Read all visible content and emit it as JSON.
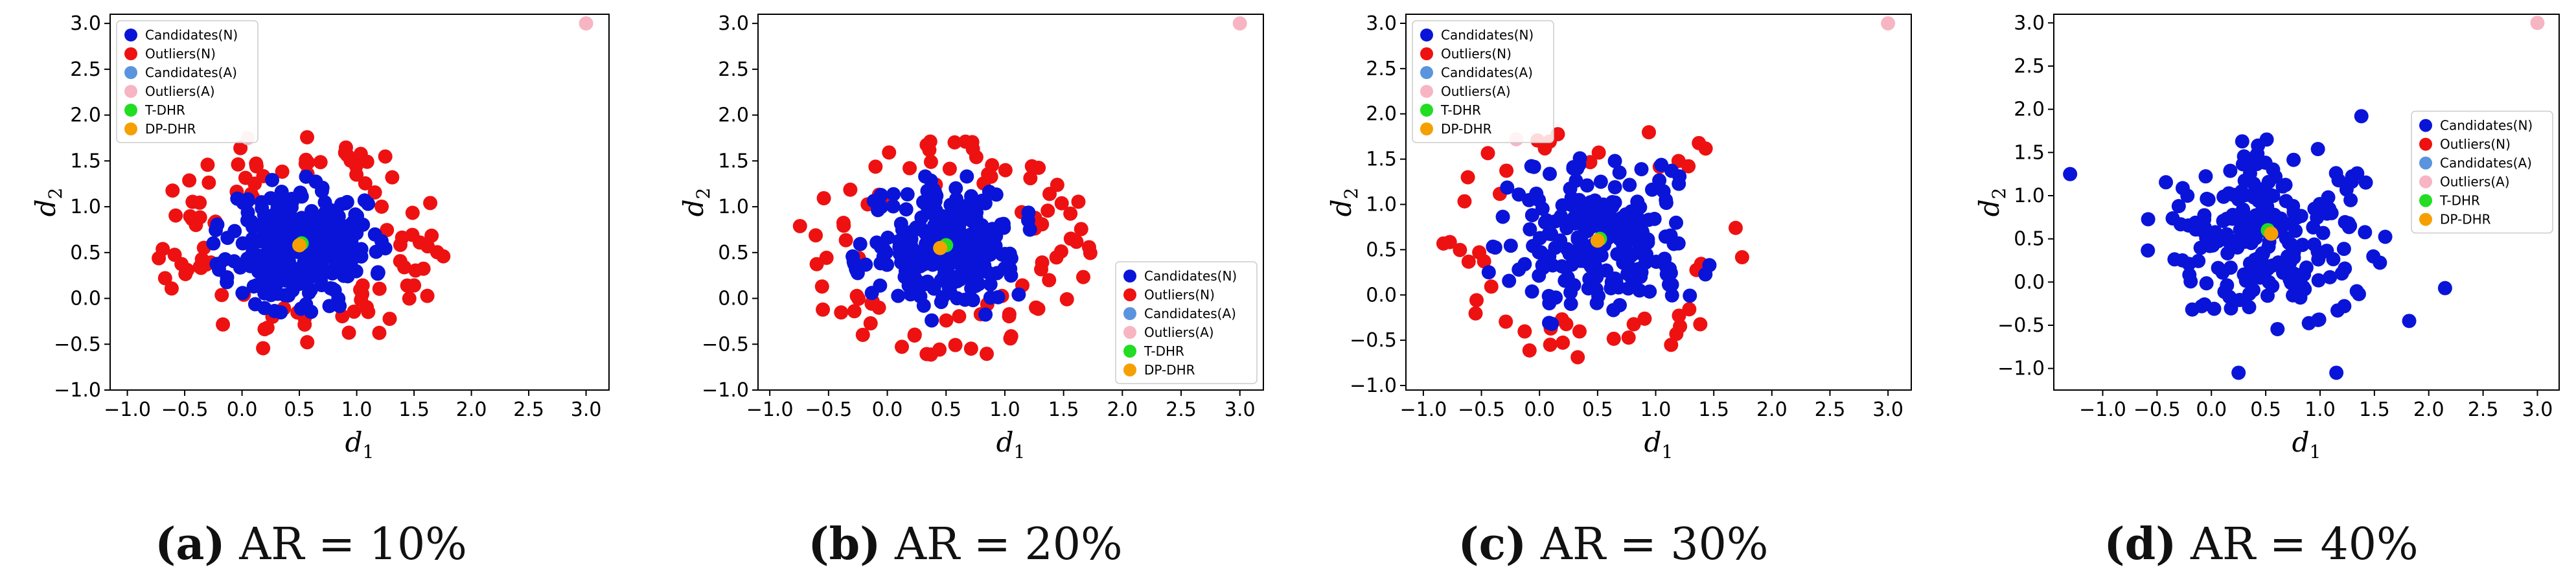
{
  "colors": {
    "candidates_n": "#0a14d8",
    "outliers_n": "#ee1111",
    "candidates_a": "#5b94de",
    "outliers_a": "#f7b5c3",
    "t_dhr": "#22dd22",
    "dp_dhr": "#f5a000"
  },
  "chart_data": [
    {
      "type": "scatter",
      "xlabel": "d",
      "xlabel_sub": "1",
      "ylabel": "d",
      "ylabel_sub": "2",
      "xlim": [
        -1.15,
        3.2
      ],
      "ylim": [
        -1.0,
        3.1
      ],
      "xticks": [
        -1.0,
        -0.5,
        0.0,
        0.5,
        1.0,
        1.5,
        2.0,
        2.5,
        3.0
      ],
      "yticks": [
        -1.0,
        -0.5,
        0.0,
        0.5,
        1.0,
        1.5,
        2.0,
        2.5,
        3.0
      ],
      "legend_position": "top-left",
      "legend": [
        "Candidates(N)",
        "Outliers(N)",
        "Candidates(A)",
        "Outliers(A)",
        "T-DHR",
        "DP-DHR"
      ],
      "outliers_a": [
        [
          3.0,
          3.0
        ],
        [
          0.05,
          1.75
        ]
      ],
      "t_dhr": [
        0.52,
        0.6
      ],
      "dp_dhr": [
        0.5,
        0.58
      ],
      "candidates": {
        "count": 300,
        "center": [
          0.5,
          0.58
        ],
        "radius": 0.75,
        "seed": 11
      },
      "outliers": {
        "count": 100,
        "center": [
          0.5,
          0.58
        ],
        "r_min": 0.8,
        "r_max": 1.5,
        "seed": 12
      },
      "caption_letter": "(a)",
      "caption_text": "AR = 10%"
    },
    {
      "type": "scatter",
      "xlabel": "d",
      "xlabel_sub": "1",
      "ylabel": "d",
      "ylabel_sub": "2",
      "xlim": [
        -1.1,
        3.2
      ],
      "ylim": [
        -1.0,
        3.1
      ],
      "xticks": [
        -1.0,
        -0.5,
        0.0,
        0.5,
        1.0,
        1.5,
        2.0,
        2.5,
        3.0
      ],
      "yticks": [
        -1.0,
        -0.5,
        0.0,
        0.5,
        1.0,
        1.5,
        2.0,
        2.5,
        3.0
      ],
      "legend_position": "bottom-right",
      "legend": [
        "Candidates(N)",
        "Outliers(N)",
        "Candidates(A)",
        "Outliers(A)",
        "T-DHR",
        "DP-DHR"
      ],
      "outliers_a": [
        [
          3.0,
          3.0
        ]
      ],
      "t_dhr": [
        0.5,
        0.58
      ],
      "dp_dhr": [
        0.45,
        0.55
      ],
      "candidates": {
        "count": 250,
        "center": [
          0.5,
          0.55
        ],
        "radius": 0.8,
        "seed": 21
      },
      "outliers": {
        "count": 90,
        "center": [
          0.5,
          0.55
        ],
        "r_min": 0.85,
        "r_max": 1.5,
        "seed": 22
      },
      "caption_letter": "(b)",
      "caption_text": "AR = 20%"
    },
    {
      "type": "scatter",
      "xlabel": "d",
      "xlabel_sub": "1",
      "ylabel": "d",
      "ylabel_sub": "2",
      "xlim": [
        -1.15,
        3.2
      ],
      "ylim": [
        -1.05,
        3.1
      ],
      "xticks": [
        -1.0,
        -0.5,
        0.0,
        0.5,
        1.0,
        1.5,
        2.0,
        2.5,
        3.0
      ],
      "yticks": [
        -1.0,
        -0.5,
        0.0,
        0.5,
        1.0,
        1.5,
        2.0,
        2.5,
        3.0
      ],
      "legend_position": "top-left",
      "legend": [
        "Candidates(N)",
        "Outliers(N)",
        "Candidates(A)",
        "Outliers(A)",
        "T-DHR",
        "DP-DHR"
      ],
      "outliers_a": [
        [
          3.0,
          3.0
        ],
        [
          -0.2,
          1.72
        ]
      ],
      "t_dhr": [
        0.52,
        0.62
      ],
      "dp_dhr": [
        0.5,
        0.6
      ],
      "candidates": {
        "count": 230,
        "center": [
          0.5,
          0.6
        ],
        "radius": 1.0,
        "seed": 31
      },
      "outliers": {
        "count": 50,
        "center": [
          0.5,
          0.6
        ],
        "r_min": 1.05,
        "r_max": 1.7,
        "seed": 32
      },
      "caption_letter": "(c)",
      "caption_text": "AR = 30%"
    },
    {
      "type": "scatter",
      "xlabel": "d",
      "xlabel_sub": "1",
      "ylabel": "d",
      "ylabel_sub": "2",
      "xlim": [
        -1.45,
        3.2
      ],
      "ylim": [
        -1.25,
        3.1
      ],
      "xticks": [
        -1.0,
        -0.5,
        0.0,
        0.5,
        1.0,
        1.5,
        2.0,
        2.5,
        3.0
      ],
      "yticks": [
        -1.0,
        -0.5,
        0.0,
        0.5,
        1.0,
        1.5,
        2.0,
        2.5,
        3.0
      ],
      "legend_position": "center-right",
      "legend": [
        "Candidates(N)",
        "Outliers(N)",
        "Candidates(A)",
        "Outliers(A)",
        "T-DHR",
        "DP-DHR"
      ],
      "outliers_a": [
        [
          3.0,
          3.0
        ]
      ],
      "t_dhr": [
        0.52,
        0.6
      ],
      "dp_dhr": [
        0.55,
        0.56
      ],
      "candidates": {
        "count": 240,
        "center": [
          0.5,
          0.55
        ],
        "radius": 1.1,
        "seed": 41
      },
      "extra_candidates": [
        [
          -1.3,
          1.25
        ],
        [
          2.15,
          -0.07
        ],
        [
          1.82,
          -0.45
        ],
        [
          1.15,
          -1.05
        ],
        [
          0.25,
          -1.05
        ],
        [
          1.38,
          1.92
        ]
      ],
      "outliers": {
        "count": 0,
        "center": [
          0.5,
          0.55
        ],
        "r_min": 1.0,
        "r_max": 1.5,
        "seed": 42
      },
      "caption_letter": "(d)",
      "caption_text": "AR = 40%"
    }
  ]
}
